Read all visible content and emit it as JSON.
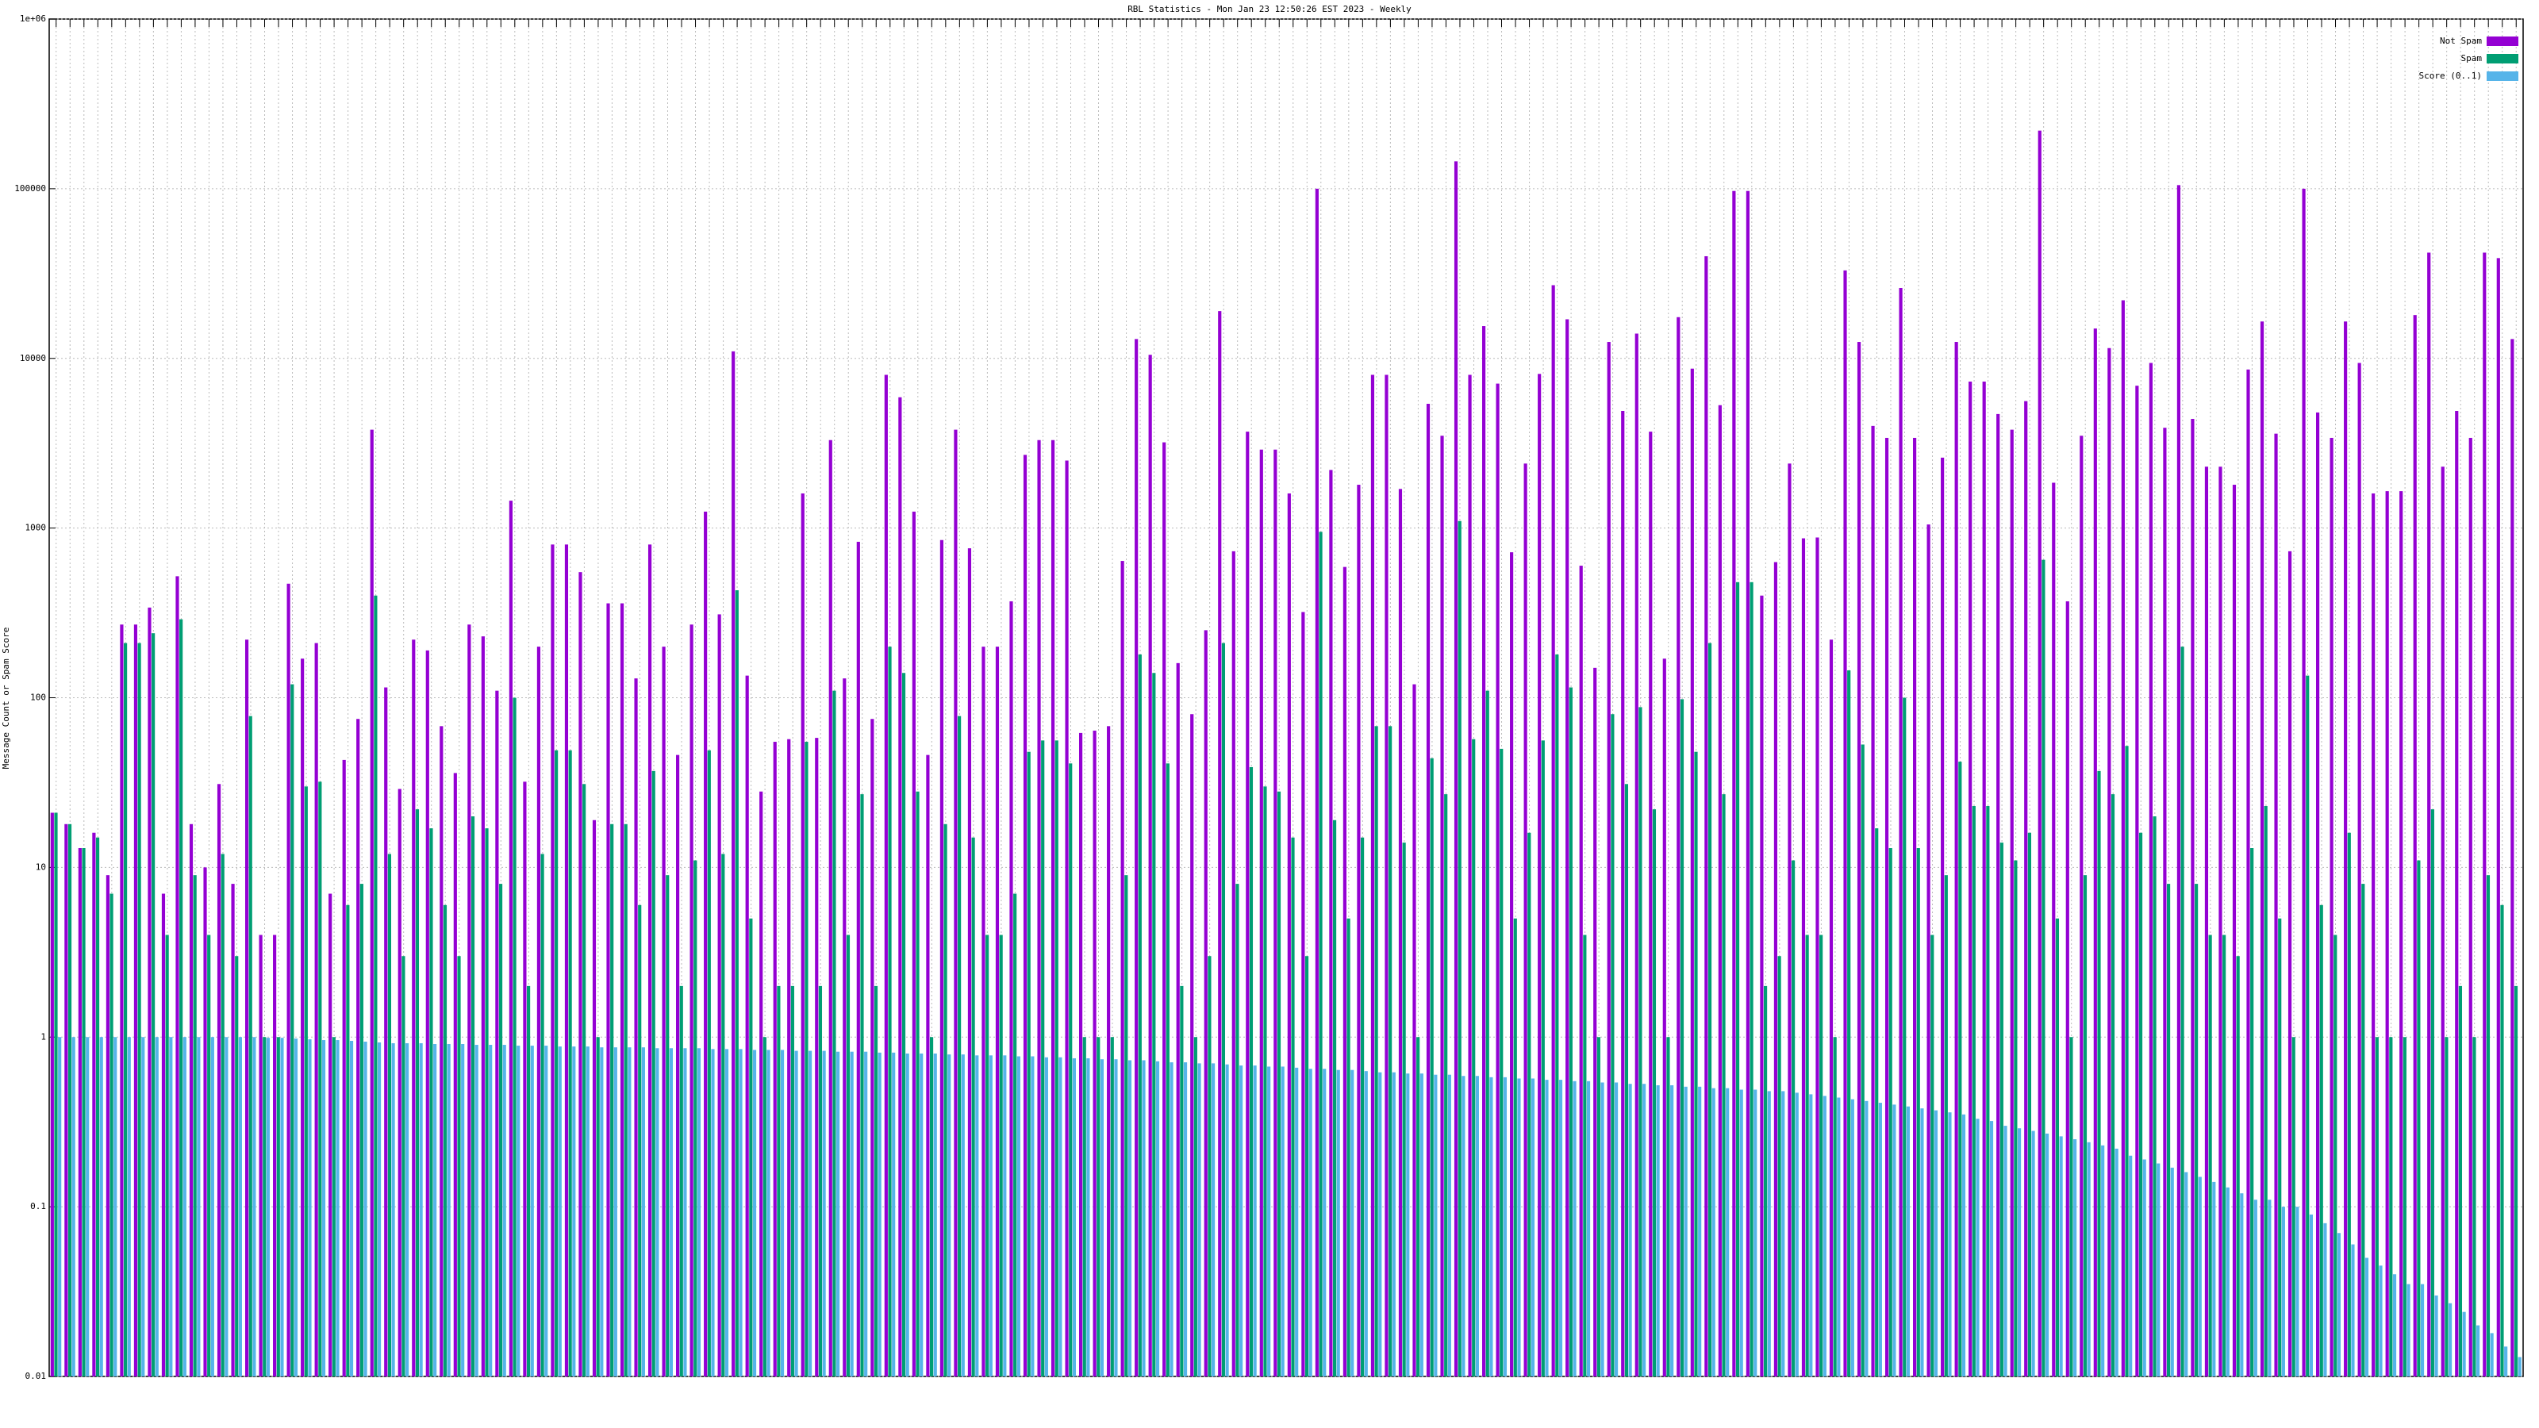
{
  "chart_data": {
    "type": "bar",
    "title": "RBL Statistics - Mon Jan 23 12:50:26 EST 2023 - Weekly",
    "y_label": "Message Count or Spam Score",
    "log_y": true,
    "grid": true,
    "legend": "top-right",
    "ylim": [
      0.01,
      1000000
    ],
    "yticks": [
      0.01,
      0.1,
      1,
      10,
      100,
      1000,
      10000,
      100000,
      {
        "value": 1000000,
        "label": "1e+06"
      }
    ],
    "categories": [
      null,
      null,
      null,
      null,
      null,
      null,
      null,
      null,
      null,
      null,
      null,
      null,
      null,
      null,
      null,
      null,
      null,
      null,
      null,
      null,
      null,
      null,
      null,
      null,
      null,
      null,
      null,
      null,
      null,
      null,
      null,
      null,
      null,
      null,
      null,
      null,
      null,
      null,
      null,
      null,
      null,
      null,
      null,
      null,
      null,
      null,
      null,
      null,
      null,
      null,
      null,
      null,
      null,
      null,
      null,
      null,
      null,
      null,
      null,
      null,
      null,
      null,
      null,
      null,
      null,
      null,
      null,
      null,
      null,
      null,
      null,
      null,
      null,
      null,
      null,
      null,
      null,
      null,
      null,
      null,
      null,
      null,
      null,
      null,
      null,
      null,
      null,
      null,
      null,
      null,
      null,
      null,
      null,
      null,
      null,
      null,
      null,
      null,
      null,
      null,
      null,
      null,
      null,
      null,
      null,
      null,
      null,
      null,
      null,
      null,
      null,
      null,
      null,
      null,
      null,
      null,
      null,
      null,
      null,
      null,
      null,
      null,
      null,
      null,
      null,
      null,
      null,
      null,
      null,
      null,
      null,
      null,
      null,
      null,
      null,
      null,
      null,
      null,
      null,
      null,
      null,
      null,
      null,
      null,
      null,
      null,
      null,
      null,
      null,
      null,
      null,
      null,
      null,
      null,
      null,
      null,
      null,
      null,
      null,
      null,
      null,
      null,
      null,
      null,
      null,
      null,
      null,
      null,
      null,
      null,
      null,
      null,
      null,
      null,
      null,
      null,
      null,
      null
    ],
    "series": [
      {
        "name": "Not Spam",
        "color": "#9400d3",
        "values": [
          21,
          18,
          13,
          16,
          9,
          270,
          270,
          340,
          7,
          520,
          18,
          10,
          31,
          8,
          220,
          4,
          4,
          470,
          170,
          210,
          7,
          43,
          75,
          3800,
          115,
          29,
          220,
          190,
          68,
          36,
          270,
          230,
          110,
          1450,
          32,
          200,
          800,
          800,
          550,
          19,
          360,
          360,
          130,
          800,
          200,
          46,
          270,
          1250,
          310,
          11000,
          135,
          28,
          55,
          57,
          1600,
          58,
          3300,
          130,
          830,
          75,
          8000,
          5900,
          1250,
          46,
          850,
          3800,
          760,
          200,
          200,
          370,
          2700,
          3300,
          3300,
          2500,
          62,
          64,
          68,
          640,
          13000,
          10500,
          3200,
          160,
          80,
          250,
          19000,
          730,
          3700,
          2900,
          2900,
          1600,
          320,
          100000,
          2200,
          590,
          1800,
          8000,
          8000,
          1700,
          120,
          5400,
          3500,
          145000,
          8000,
          15500,
          7100,
          720,
          2400,
          8100,
          27000,
          17000,
          600,
          150,
          12500,
          4900,
          14000,
          3700,
          170,
          17500,
          8700,
          40000,
          5300,
          97000,
          97000,
          400,
          630,
          2400,
          870,
          880,
          220,
          33000,
          12500,
          4000,
          3400,
          26000,
          3400,
          1050,
          2600,
          12500,
          7300,
          7300,
          4700,
          3800,
          5600,
          220000,
          1850,
          370,
          3500,
          15000,
          11500,
          22000,
          6900,
          9400,
          3900,
          105000,
          4400,
          2300,
          2300,
          1800,
          8600,
          16500,
          3600,
          730,
          100000,
          4800,
          3400,
          16500,
          9400,
          1600,
          1650,
          1650,
          18000,
          42000,
          2300,
          4900,
          3400,
          42000,
          39000,
          13000
        ]
      },
      {
        "name": "Spam",
        "color": "#009e73",
        "values": [
          21,
          18,
          13,
          15,
          7,
          210,
          210,
          240,
          4,
          290,
          9,
          4,
          12,
          3,
          78,
          1,
          1,
          120,
          30,
          32,
          1,
          6,
          8,
          400,
          12,
          3,
          22,
          17,
          6,
          3,
          20,
          17,
          8,
          100,
          2,
          12,
          49,
          49,
          31,
          1,
          18,
          18,
          6,
          37,
          9,
          2,
          11,
          49,
          12,
          430,
          5,
          1,
          2,
          2,
          55,
          2,
          110,
          4,
          27,
          2,
          200,
          140,
          28,
          1,
          18,
          78,
          15,
          4,
          4,
          7,
          48,
          56,
          56,
          41,
          1,
          1,
          1,
          9,
          180,
          140,
          41,
          2,
          1,
          3,
          210,
          8,
          39,
          30,
          28,
          15,
          3,
          950,
          19,
          5,
          15,
          68,
          68,
          14,
          1,
          44,
          27,
          1100,
          57,
          110,
          50,
          5,
          16,
          56,
          180,
          115,
          4,
          1,
          80,
          31,
          88,
          22,
          1,
          98,
          48,
          210,
          27,
          480,
          480,
          2,
          3,
          11,
          4,
          4,
          1,
          145,
          53,
          17,
          13,
          100,
          13,
          4,
          9,
          42,
          23,
          23,
          14,
          11,
          16,
          650,
          5,
          1,
          9,
          37,
          27,
          52,
          16,
          20,
          8,
          200,
          8,
          4,
          4,
          3,
          13,
          23,
          5,
          1,
          135,
          6,
          4,
          16,
          8,
          1,
          1,
          1,
          11,
          22,
          1,
          2,
          1,
          9,
          6,
          2
        ]
      },
      {
        "name": "Score (0..1)",
        "color": "#56b4e9",
        "values": [
          1,
          1,
          1,
          1,
          1,
          1,
          1,
          1,
          1,
          1,
          1,
          1,
          1,
          1,
          1,
          0.99,
          0.99,
          0.98,
          0.97,
          0.96,
          0.96,
          0.95,
          0.94,
          0.93,
          0.92,
          0.92,
          0.92,
          0.91,
          0.91,
          0.91,
          0.9,
          0.9,
          0.9,
          0.89,
          0.89,
          0.89,
          0.88,
          0.88,
          0.88,
          0.87,
          0.87,
          0.87,
          0.87,
          0.86,
          0.86,
          0.86,
          0.86,
          0.85,
          0.85,
          0.85,
          0.84,
          0.84,
          0.84,
          0.83,
          0.83,
          0.83,
          0.82,
          0.82,
          0.82,
          0.81,
          0.81,
          0.8,
          0.8,
          0.8,
          0.79,
          0.79,
          0.78,
          0.78,
          0.78,
          0.77,
          0.77,
          0.76,
          0.76,
          0.75,
          0.75,
          0.74,
          0.74,
          0.73,
          0.73,
          0.72,
          0.71,
          0.71,
          0.7,
          0.7,
          0.69,
          0.68,
          0.68,
          0.67,
          0.67,
          0.66,
          0.65,
          0.65,
          0.64,
          0.64,
          0.63,
          0.62,
          0.62,
          0.61,
          0.61,
          0.6,
          0.6,
          0.59,
          0.59,
          0.58,
          0.58,
          0.57,
          0.57,
          0.56,
          0.56,
          0.55,
          0.55,
          0.54,
          0.54,
          0.53,
          0.53,
          0.52,
          0.52,
          0.51,
          0.51,
          0.5,
          0.5,
          0.49,
          0.49,
          0.48,
          0.48,
          0.47,
          0.46,
          0.45,
          0.44,
          0.43,
          0.42,
          0.41,
          0.4,
          0.39,
          0.38,
          0.37,
          0.36,
          0.35,
          0.33,
          0.32,
          0.3,
          0.29,
          0.28,
          0.27,
          0.26,
          0.25,
          0.24,
          0.23,
          0.22,
          0.2,
          0.19,
          0.18,
          0.17,
          0.16,
          0.15,
          0.14,
          0.13,
          0.12,
          0.11,
          0.11,
          0.1,
          0.1,
          0.09,
          0.08,
          0.07,
          0.06,
          0.05,
          0.045,
          0.04,
          0.035,
          0.035,
          0.03,
          0.027,
          0.024,
          0.02,
          0.018,
          0.015,
          0.013
        ]
      }
    ]
  }
}
